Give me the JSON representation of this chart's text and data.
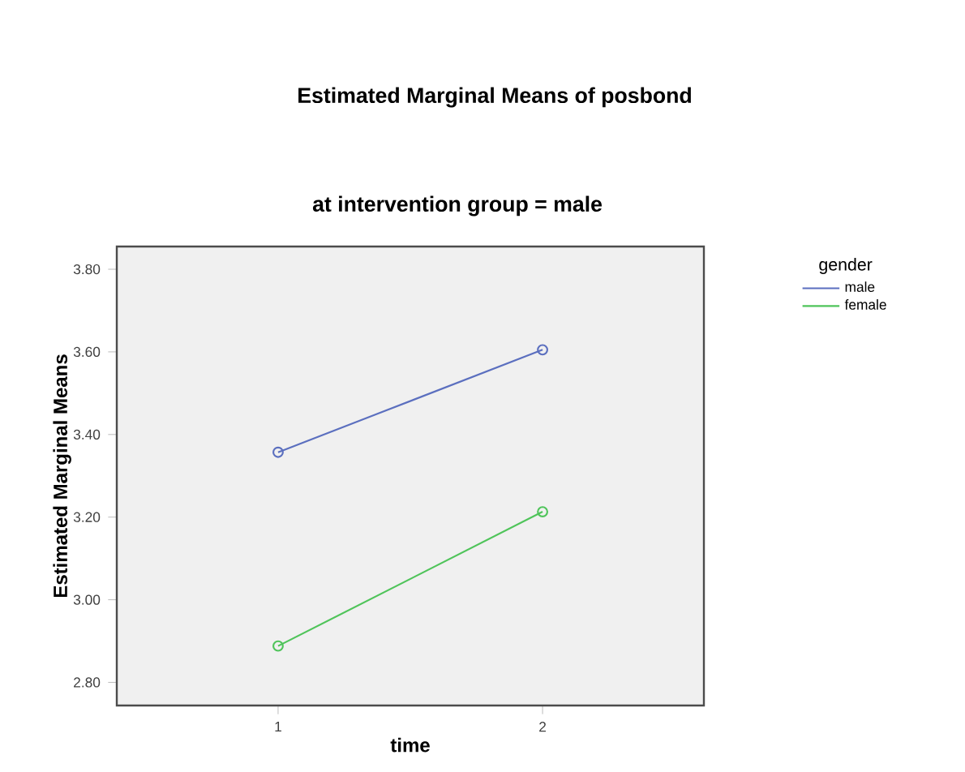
{
  "chart_data": {
    "type": "line",
    "title": "Estimated Marginal Means of posbond",
    "subtitle": "at intervention group = male",
    "xlabel": "time",
    "ylabel": "Estimated Marginal Means",
    "legend_title": "gender",
    "categories": [
      "1",
      "2"
    ],
    "series": [
      {
        "name": "male",
        "color": "#5b6fbf",
        "values": [
          3.357,
          3.605
        ]
      },
      {
        "name": "female",
        "color": "#4fc45a",
        "values": [
          2.888,
          3.213
        ]
      }
    ],
    "ylim": [
      2.744,
      3.855
    ],
    "yticks": [
      {
        "value": 2.8,
        "label": "2.80"
      },
      {
        "value": 3.0,
        "label": "3.00"
      },
      {
        "value": 3.2,
        "label": "3.20"
      },
      {
        "value": 3.4,
        "label": "3.40"
      },
      {
        "value": 3.6,
        "label": "3.60"
      },
      {
        "value": 3.8,
        "label": "3.80"
      }
    ],
    "marker": "circle",
    "line_style": "solid",
    "legend": "top right"
  }
}
